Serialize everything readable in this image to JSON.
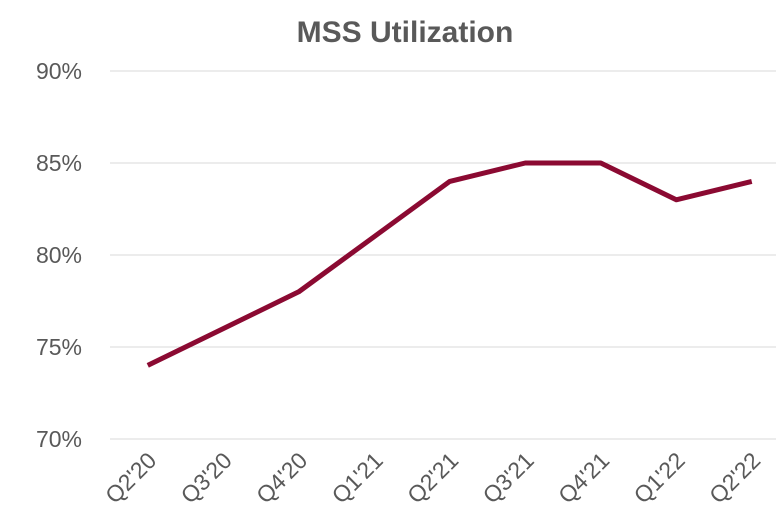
{
  "chart_data": {
    "type": "line",
    "title": "MSS Utilization",
    "categories": [
      "Q2'20",
      "Q3'20",
      "Q4'20",
      "Q1'21",
      "Q2'21",
      "Q3'21",
      "Q4'21",
      "Q1'22",
      "Q2'22"
    ],
    "values": [
      74,
      76,
      78,
      81,
      84,
      85,
      85,
      83,
      84
    ],
    "color": "#8b0a32",
    "ylim": [
      70,
      90
    ],
    "yticks": [
      {
        "value": 70,
        "label": "70%"
      },
      {
        "value": 75,
        "label": "75%"
      },
      {
        "value": 80,
        "label": "80%"
      },
      {
        "value": 85,
        "label": "85%"
      },
      {
        "value": 90,
        "label": "90%"
      }
    ],
    "grid": true
  }
}
